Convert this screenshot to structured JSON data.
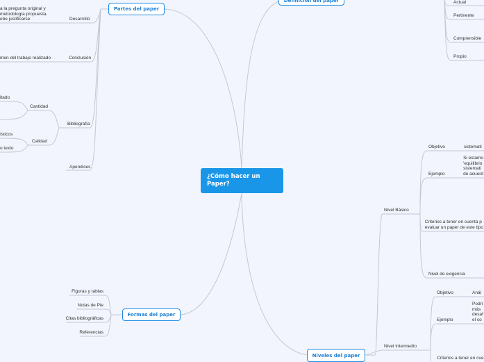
{
  "central": {
    "label": "¿Cómo hacer un Paper?"
  },
  "partes": {
    "label": "Partes del paper",
    "desarrollo": {
      "label": "Desarrollo",
      "text": [
        "a la pregunta original y",
        "metodología propuesta.",
        "ebe justificarse"
      ]
    },
    "conclusion": {
      "label": "Conclusión",
      "text": "men del trabajo realizado"
    },
    "bibliografia": {
      "label": "Bibliografía",
      "cantidad": {
        "label": "Cantidad",
        "child": "itado"
      },
      "calidad": {
        "label": "Calidad",
        "children": [
          "ísticos",
          "o texto"
        ]
      }
    },
    "apendices": {
      "label": "Apendices"
    }
  },
  "definicion": {
    "label": "Definición del paper",
    "items": [
      "Actual",
      "Pertinente",
      "Comprensible",
      "Propio"
    ]
  },
  "niveles": {
    "label": "Niveles del paper",
    "basico": {
      "label": "Nivel Básico",
      "objetivo": "Objetivo",
      "objetivo_text": "sistemati",
      "ejemplo": "Ejemplo",
      "ejemplo_text": [
        "Si estamo",
        "'equilibrio",
        "sistemati",
        "de acuerd"
      ],
      "criterios": [
        "Criterios a tener en cuenta p",
        "evaluar un paper de este tipo"
      ],
      "exigencia": "Nivel de exigencia"
    },
    "intermedio": {
      "label": "Nivel Intermedio",
      "objetivo": "Objetivo",
      "objetivo_text": "Anál",
      "ejemplo": "Ejemplo",
      "ejemplo_text": [
        "Podrí",
        "más",
        "desaf",
        "el co"
      ],
      "criterios": "Criterios a tener en cue"
    }
  },
  "formas": {
    "label": "Formas del paper",
    "items": [
      "Figuras y tablas",
      "Notas de Pie",
      "Citas bibliográficas",
      "Referencias"
    ]
  }
}
